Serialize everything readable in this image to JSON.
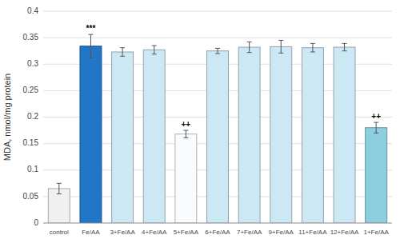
{
  "chart_data": {
    "type": "bar",
    "categories": [
      "control",
      "Fe/AA",
      "3+Fe/AA",
      "4+Fe/AA",
      "5+Fe/AA",
      "6+Fe/AA",
      "7+Fe/AA",
      "9+Fe/AA",
      "11+Fe/AA",
      "12+Fe/AA",
      "1+Fe/AA"
    ],
    "values": [
      0.065,
      0.334,
      0.323,
      0.327,
      0.168,
      0.325,
      0.332,
      0.333,
      0.331,
      0.332,
      0.18
    ],
    "errors": [
      0.01,
      0.022,
      0.008,
      0.008,
      0.007,
      0.005,
      0.01,
      0.012,
      0.008,
      0.007,
      0.01
    ],
    "colors": [
      "#f0f0f0",
      "#2176c7",
      "#cce8f4",
      "#cce8f4",
      "#f8fcff",
      "#cce8f4",
      "#cce8f4",
      "#cce8f4",
      "#cce8f4",
      "#cce8f4",
      "#8ecfdf"
    ],
    "annotations": [
      {
        "category": "Fe/AA",
        "text": "***"
      },
      {
        "category": "5+Fe/AA",
        "text": "++"
      },
      {
        "category": "1+Fe/AA",
        "text": "++"
      }
    ],
    "ylabel": "MDA, nmol/mg protein",
    "ylim": [
      0,
      0.4
    ],
    "yticks": [
      0,
      0.05,
      0.1,
      0.15,
      0.2,
      0.25,
      0.3,
      0.35,
      0.4
    ],
    "grid": true
  }
}
